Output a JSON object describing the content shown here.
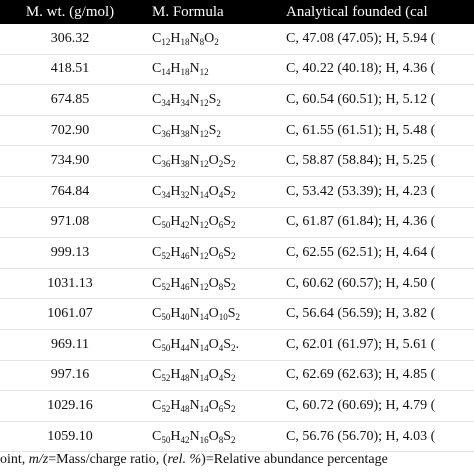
{
  "table": {
    "header": [
      "M. wt. (g/mol)",
      "M. Formula",
      "Analytical founded (cal"
    ],
    "rows": [
      [
        "306.32",
        "C12H18N8O2",
        "C, 47.08 (47.05); H, 5.94 ("
      ],
      [
        "418.51",
        "C14H18N12",
        "C, 40.22 (40.18); H, 4.36 ("
      ],
      [
        "674.85",
        "C34H34N12S2",
        "C, 60.54 (60.51); H, 5.12 ("
      ],
      [
        "702.90",
        "C36H38N12S2",
        "C, 61.55 (61.51); H, 5.48 ("
      ],
      [
        "734.90",
        "C36H38N12O2S2",
        "C, 58.87 (58.84); H, 5.25 ("
      ],
      [
        "764.84",
        "C34H32N14O4S2",
        "C, 53.42 (53.39); H, 4.23 ("
      ],
      [
        "971.08",
        "C50H42N12O6S2",
        "C, 61.87 (61.84); H, 4.36 ("
      ],
      [
        "999.13",
        "C52H46N12O6S2",
        "C, 62.55 (62.51); H, 4.64 ("
      ],
      [
        "1031.13",
        "C52H46N12O8S2",
        "C, 60.62 (60.57); H, 4.50 ("
      ],
      [
        "1061.07",
        "C50H40N14O10S2",
        "C, 56.64 (56.59); H, 3.82 ("
      ],
      [
        "969.11",
        "C50H44N14O4S2.",
        "C, 62.01 (61.97); H, 5.61 ("
      ],
      [
        "997.16",
        "C52H48N14O4S2",
        "C, 62.69 (62.63); H, 4.85 ("
      ],
      [
        "1029.16",
        "C52H48N14O6S2",
        "C, 60.72 (60.69); H, 4.79 ("
      ],
      [
        "1059.10",
        "C50H42N16O8S2",
        "C, 56.76 (56.70); H, 4.03 ("
      ]
    ]
  },
  "footer": [
    "oint, ",
    "m/z",
    "=Mass/charge ratio, (",
    "rel. %",
    ")=Relative abundance percentage"
  ]
}
